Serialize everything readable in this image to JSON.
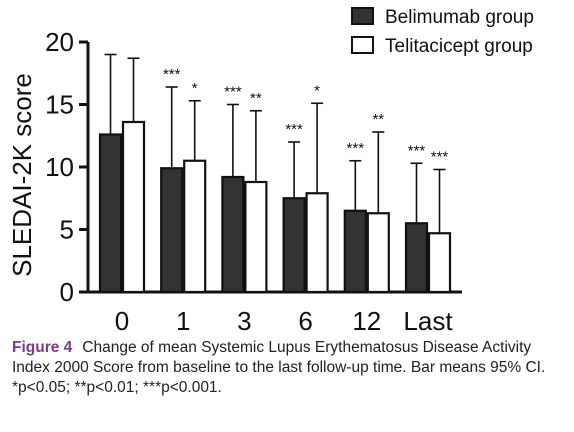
{
  "chart_data": {
    "type": "bar",
    "categories": [
      "0",
      "1",
      "3",
      "6",
      "12",
      "Last"
    ],
    "ylabel": "SLEDAI-2K score",
    "xlabel": "",
    "ylim": [
      0,
      20
    ],
    "yticks": [
      "0",
      "5",
      "10",
      "15",
      "20"
    ],
    "series": [
      {
        "name": "Belimumab group",
        "color": "#333333",
        "values": [
          12.6,
          9.9,
          9.2,
          7.5,
          6.5,
          5.5
        ],
        "error_upper": [
          19.0,
          16.4,
          15.0,
          12.0,
          10.5,
          10.3
        ],
        "significance": [
          "",
          "***",
          "***",
          "***",
          "***",
          "***"
        ]
      },
      {
        "name": "Telitacicept group",
        "color": "#ffffff",
        "values": [
          13.6,
          10.5,
          8.8,
          7.9,
          6.3,
          4.7
        ],
        "error_upper": [
          18.7,
          15.3,
          14.5,
          15.1,
          12.8,
          9.8
        ],
        "significance": [
          "",
          "*",
          "**",
          "*",
          "**",
          "***"
        ]
      }
    ],
    "legend_position": "top-right",
    "grid": false
  },
  "caption": {
    "figure_label": "Figure 4",
    "text": "Change of mean Systemic Lupus Erythematosus Disease Activity Index 2000 Score from baseline to the last follow-up time. Bar means 95% CI. *p<0.05; **p<0.01; ***p<0.001."
  }
}
